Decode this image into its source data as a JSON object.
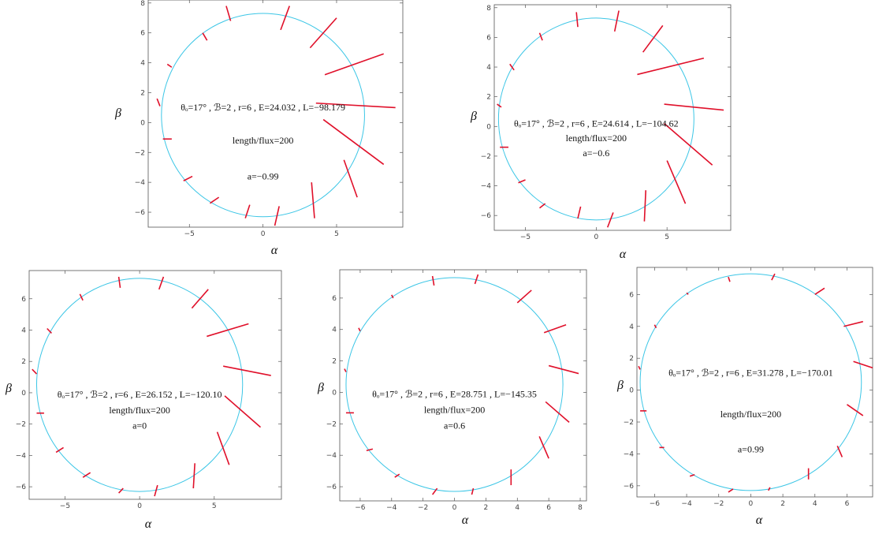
{
  "chart_data": [
    {
      "type": "scatter",
      "xlabel": "α",
      "ylabel": "β",
      "xticks": [
        -5,
        0,
        5
      ],
      "yticks": [
        -6,
        -4,
        -2,
        0,
        2,
        4,
        6,
        8
      ],
      "xlim": [
        -7.8,
        9.5
      ],
      "ylim": [
        -7.0,
        8.2
      ],
      "grid": false,
      "ring": {
        "center": [
          0.0,
          0.5
        ],
        "radii": [
          6.9,
          6.8
        ]
      },
      "annotations": [
        "θₒ=17° , ℬ=2 , r=6 , E=24.032 , L=−98.179",
        "length/flux=200",
        "a=−0.99"
      ],
      "annotation_positions": [
        [
          0.0,
          0.8
        ],
        [
          0.0,
          -1.4
        ],
        [
          0.0,
          -3.8
        ]
      ],
      "segments": [
        [
          -2.5,
          7.8,
          -2.2,
          6.8
        ],
        [
          1.2,
          6.2,
          1.8,
          7.8
        ],
        [
          3.2,
          5.0,
          5.0,
          7.0
        ],
        [
          4.2,
          3.2,
          8.2,
          4.6
        ],
        [
          3.6,
          1.3,
          9.0,
          1.0
        ],
        [
          4.1,
          0.2,
          8.2,
          -2.8
        ],
        [
          5.5,
          -2.5,
          6.4,
          -5.0
        ],
        [
          3.5,
          -6.4,
          3.3,
          -4.0
        ],
        [
          0.8,
          -6.9,
          1.1,
          -5.6
        ],
        [
          -1.2,
          -6.4,
          -0.9,
          -5.5
        ],
        [
          -3.6,
          -5.4,
          -3.0,
          -5.0
        ],
        [
          -5.4,
          -3.9,
          -4.8,
          -3.6
        ],
        [
          -6.8,
          -1.1,
          -6.2,
          -1.1
        ],
        [
          -7.2,
          1.6,
          -7.0,
          1.1
        ],
        [
          -6.5,
          3.9,
          -6.2,
          3.7
        ],
        [
          -4.1,
          6.0,
          -3.8,
          5.5
        ]
      ]
    },
    {
      "type": "scatter",
      "xlabel": "α",
      "ylabel": "β",
      "xticks": [
        -5,
        0,
        5
      ],
      "yticks": [
        -6,
        -4,
        -2,
        0,
        2,
        4,
        6,
        8
      ],
      "xlim": [
        -7.2,
        9.5
      ],
      "ylim": [
        -7.0,
        8.2
      ],
      "grid": false,
      "ring": {
        "center": [
          0.0,
          0.5
        ],
        "radii": [
          6.9,
          6.8
        ]
      },
      "annotations": [
        "θₒ=17° , ℬ=2 , r=6 , E=24.614 , L=−104.62",
        "length/flux=200",
        "a=−0.6"
      ],
      "annotation_positions": [
        [
          0.0,
          0.0
        ],
        [
          0.0,
          -1.0
        ],
        [
          0.0,
          -2.0
        ]
      ],
      "segments": [
        [
          -1.4,
          7.7,
          -1.3,
          6.7
        ],
        [
          1.3,
          6.4,
          1.6,
          7.8
        ],
        [
          3.3,
          5.0,
          4.7,
          6.8
        ],
        [
          2.9,
          3.5,
          7.6,
          4.6
        ],
        [
          4.8,
          1.5,
          9.0,
          1.1
        ],
        [
          4.8,
          0.2,
          8.2,
          -2.6
        ],
        [
          5.0,
          -2.3,
          6.3,
          -5.2
        ],
        [
          3.5,
          -4.3,
          3.4,
          -6.4
        ],
        [
          0.8,
          -6.8,
          1.2,
          -5.8
        ],
        [
          -1.3,
          -6.2,
          -1.1,
          -5.4
        ],
        [
          -4.0,
          -5.5,
          -3.6,
          -5.2
        ],
        [
          -5.5,
          -3.8,
          -5.0,
          -3.6
        ],
        [
          -6.8,
          -1.4,
          -6.2,
          -1.4
        ],
        [
          -7.0,
          1.5,
          -6.7,
          1.3
        ],
        [
          -6.1,
          4.2,
          -5.8,
          3.8
        ],
        [
          -4.0,
          6.3,
          -3.8,
          5.8
        ]
      ]
    },
    {
      "type": "scatter",
      "xlabel": "α",
      "ylabel": "β",
      "xticks": [
        -5,
        0,
        5
      ],
      "yticks": [
        -6,
        -4,
        -2,
        0,
        2,
        4,
        6
      ],
      "xlim": [
        -7.4,
        9.5
      ],
      "ylim": [
        -6.8,
        7.8
      ],
      "grid": false,
      "ring": {
        "center": [
          0.0,
          0.5
        ],
        "radii": [
          6.9,
          6.8
        ]
      },
      "annotations": [
        "θₒ=17° , ℬ=2 , r=6 , E=26.152 , L=−120.10",
        "length/flux=200",
        "a=0"
      ],
      "annotation_positions": [
        [
          0.0,
          -0.3
        ],
        [
          0.0,
          -1.3
        ],
        [
          0.0,
          -2.3
        ]
      ],
      "segments": [
        [
          -1.4,
          7.4,
          -1.3,
          6.7
        ],
        [
          1.3,
          6.6,
          1.6,
          7.4
        ],
        [
          3.5,
          5.4,
          4.6,
          6.6
        ],
        [
          4.5,
          3.6,
          7.3,
          4.4
        ],
        [
          5.6,
          1.7,
          8.8,
          1.1
        ],
        [
          5.7,
          -0.2,
          8.1,
          -2.2
        ],
        [
          5.2,
          -2.5,
          6.0,
          -4.6
        ],
        [
          3.7,
          -4.5,
          3.6,
          -6.1
        ],
        [
          1.0,
          -6.6,
          1.2,
          -5.9
        ],
        [
          -1.4,
          -6.4,
          -1.1,
          -6.1
        ],
        [
          -3.8,
          -5.4,
          -3.3,
          -5.1
        ],
        [
          -5.6,
          -3.8,
          -5.1,
          -3.5
        ],
        [
          -6.9,
          -1.3,
          -6.4,
          -1.3
        ],
        [
          -7.2,
          1.5,
          -6.9,
          1.2
        ],
        [
          -6.2,
          4.1,
          -5.9,
          3.8
        ],
        [
          -4.0,
          6.3,
          -3.8,
          5.9
        ]
      ]
    },
    {
      "type": "scatter",
      "xlabel": "α",
      "ylabel": "β",
      "xticks": [
        -6,
        -4,
        -2,
        0,
        2,
        4,
        6,
        8
      ],
      "yticks": [
        -6,
        -4,
        -2,
        0,
        2,
        4,
        6
      ],
      "xlim": [
        -7.3,
        8.4
      ],
      "ylim": [
        -6.9,
        7.8
      ],
      "grid": false,
      "ring": {
        "center": [
          0.0,
          0.5
        ],
        "radii": [
          6.9,
          6.8
        ]
      },
      "annotations": [
        "θₒ=17° , ℬ=2 , r=6 , E=28.751 , L=−145.35",
        "length/flux=200",
        "a=0.6"
      ],
      "annotation_positions": [
        [
          0.0,
          -0.3
        ],
        [
          0.0,
          -1.3
        ],
        [
          0.0,
          -2.3
        ]
      ],
      "segments": [
        [
          -1.4,
          7.4,
          -1.3,
          6.8
        ],
        [
          1.3,
          6.9,
          1.5,
          7.5
        ],
        [
          4.0,
          5.7,
          4.9,
          6.5
        ],
        [
          5.7,
          3.8,
          7.1,
          4.3
        ],
        [
          6.0,
          1.7,
          7.9,
          1.2
        ],
        [
          5.8,
          -0.6,
          7.3,
          -1.9
        ],
        [
          5.4,
          -2.8,
          6.0,
          -4.2
        ],
        [
          3.6,
          -4.9,
          3.6,
          -5.9
        ],
        [
          1.1,
          -6.5,
          1.2,
          -6.1
        ],
        [
          -1.4,
          -6.5,
          -1.1,
          -6.1
        ],
        [
          -3.8,
          -5.4,
          -3.5,
          -5.2
        ],
        [
          -5.6,
          -3.7,
          -5.2,
          -3.6
        ],
        [
          -6.9,
          -1.3,
          -6.4,
          -1.3
        ],
        [
          -7.0,
          1.5,
          -6.9,
          1.3
        ],
        [
          -6.1,
          4.1,
          -6.0,
          3.9
        ],
        [
          -4.0,
          6.2,
          -3.9,
          6.0
        ]
      ]
    },
    {
      "type": "scatter",
      "xlabel": "α",
      "ylabel": "β",
      "xticks": [
        -6,
        -4,
        -2,
        0,
        2,
        4,
        6
      ],
      "yticks": [
        -6,
        -4,
        -2,
        0,
        2,
        4,
        6
      ],
      "xlim": [
        -7.1,
        7.6
      ],
      "ylim": [
        -6.7,
        7.7
      ],
      "grid": false,
      "ring": {
        "center": [
          0.0,
          0.5
        ],
        "radii": [
          6.9,
          6.8
        ]
      },
      "annotations": [
        "θₒ=17° , ℬ=2 , r=6 , E=31.278 , L=−170.01",
        "length/flux=200",
        "a=0.99"
      ],
      "annotation_positions": [
        [
          0.0,
          0.9
        ],
        [
          0.0,
          -1.7
        ],
        [
          0.0,
          -3.9
        ]
      ],
      "segments": [
        [
          -1.4,
          7.1,
          -1.3,
          6.8
        ],
        [
          1.3,
          6.9,
          1.5,
          7.3
        ],
        [
          4.0,
          6.0,
          4.6,
          6.4
        ],
        [
          5.8,
          4.0,
          7.0,
          4.3
        ],
        [
          6.4,
          1.8,
          7.6,
          1.4
        ],
        [
          6.0,
          -0.9,
          7.0,
          -1.6
        ],
        [
          5.4,
          -3.5,
          5.7,
          -4.2
        ],
        [
          3.6,
          -4.9,
          3.6,
          -5.6
        ],
        [
          1.1,
          -6.3,
          1.2,
          -6.1
        ],
        [
          -1.4,
          -6.4,
          -1.1,
          -6.2
        ],
        [
          -3.8,
          -5.4,
          -3.5,
          -5.3
        ],
        [
          -5.7,
          -3.6,
          -5.4,
          -3.6
        ],
        [
          -6.9,
          -1.3,
          -6.5,
          -1.3
        ],
        [
          -7.0,
          1.5,
          -6.9,
          1.3
        ],
        [
          -6.0,
          4.1,
          -5.9,
          3.9
        ],
        [
          -4.0,
          6.1,
          -3.9,
          6.0
        ]
      ]
    }
  ]
}
